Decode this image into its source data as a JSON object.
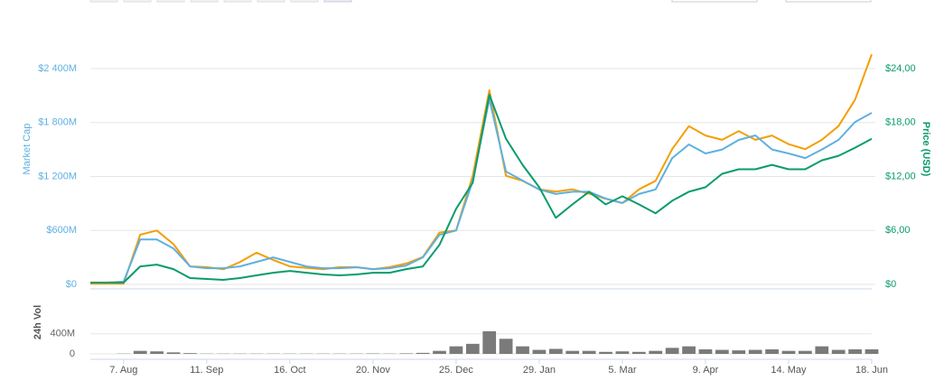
{
  "chart_data": {
    "type": "line",
    "ylabel": "Market Cap",
    "y2label": "Price (USD)",
    "categories": [
      null,
      null,
      "7. Aug",
      null,
      null,
      null,
      null,
      "11. Sep",
      null,
      null,
      null,
      null,
      "16. Oct",
      null,
      null,
      null,
      null,
      "20. Nov",
      null,
      null,
      null,
      null,
      "25. Dec",
      null,
      null,
      null,
      null,
      "29. Jan",
      null,
      null,
      null,
      null,
      "5. Mar",
      null,
      null,
      null,
      null,
      "9. Apr",
      null,
      null,
      null,
      null,
      "14. May",
      null,
      null,
      null,
      null,
      "18. Jun"
    ],
    "series": [
      {
        "color": "#5fb0e0",
        "values": [
          20,
          20,
          30,
          500,
          500,
          400,
          200,
          180,
          180,
          200,
          250,
          300,
          250,
          200,
          180,
          180,
          190,
          170,
          180,
          210,
          300,
          550,
          600,
          1150,
          2060,
          1255,
          1155,
          1055,
          1005,
          1030,
          1030,
          955,
          905,
          1005,
          1055,
          1405,
          1556,
          1456,
          1500,
          1607,
          1657,
          1500,
          1456,
          1405,
          1500,
          1607,
          1807,
          1908
        ]
      },
      {
        "color": "#0a9b6e",
        "axis": "y2",
        "values": [
          0.2,
          0.2,
          0.2,
          2.0,
          2.2,
          1.7,
          0.7,
          0.6,
          0.5,
          0.7,
          1.0,
          1.3,
          1.5,
          1.3,
          1.1,
          1.0,
          1.1,
          1.3,
          1.3,
          1.7,
          2.0,
          4.4,
          8.4,
          11.3,
          21.1,
          16.2,
          13.3,
          10.8,
          7.4,
          8.9,
          10.3,
          8.9,
          9.8,
          8.9,
          7.9,
          9.3,
          10.3,
          10.8,
          12.3,
          12.8,
          12.8,
          13.3,
          12.8,
          12.8,
          13.8,
          14.3,
          15.2,
          16.2
        ]
      },
      {
        "color": "#f29f05",
        "axis": "y3",
        "values": [
          1e-05,
          1e-05,
          1e-05,
          0.00069,
          0.00075,
          0.00056,
          0.00025,
          0.00024,
          0.00021,
          0.00031,
          0.00044,
          0.00034,
          0.00025,
          0.00023,
          0.00021,
          0.00024,
          0.00024,
          0.00021,
          0.00024,
          0.00029,
          0.00038,
          0.00072,
          0.00075,
          0.00151,
          0.0027,
          0.00151,
          0.00144,
          0.00132,
          0.00129,
          0.00132,
          0.00126,
          0.00119,
          0.00113,
          0.00132,
          0.00144,
          0.00188,
          0.0022,
          0.00207,
          0.00201,
          0.00213,
          0.00201,
          0.00207,
          0.00195,
          0.00188,
          0.00201,
          0.0022,
          0.00257,
          0.0032
        ]
      }
    ],
    "ylim": [
      0,
      2400
    ],
    "yticks": [
      {
        "value": 0,
        "label": "$0"
      },
      {
        "value": 600,
        "label": "$600M"
      },
      {
        "value": 1200,
        "label": "$1 200M"
      },
      {
        "value": 1800,
        "label": "$1 800M"
      },
      {
        "value": 2400,
        "label": "$2 400M"
      }
    ],
    "y2lim": [
      0,
      24
    ],
    "y2ticks": [
      {
        "value": 0,
        "label": "$0"
      },
      {
        "value": 6,
        "label": "$6,00"
      },
      {
        "value": 12,
        "label": "$12,00"
      },
      {
        "value": 18,
        "label": "$18,00"
      },
      {
        "value": 24,
        "label": "$24,00"
      }
    ],
    "y3lim": [
      0,
      0.003
    ],
    "grid": true,
    "volume": {
      "ylabel": "24h Vol",
      "color": "#7a7a7a",
      "values": [
        0,
        0,
        5,
        60,
        50,
        30,
        15,
        5,
        5,
        5,
        5,
        5,
        5,
        5,
        5,
        5,
        5,
        8,
        5,
        10,
        20,
        60,
        150,
        200,
        450,
        300,
        150,
        80,
        100,
        60,
        60,
        40,
        50,
        40,
        60,
        120,
        150,
        90,
        80,
        70,
        80,
        90,
        60,
        60,
        150,
        80,
        90,
        90
      ],
      "ylim": [
        0,
        700
      ],
      "yticks": [
        0,
        {
          "value": 400,
          "label": "400M"
        }
      ]
    }
  }
}
